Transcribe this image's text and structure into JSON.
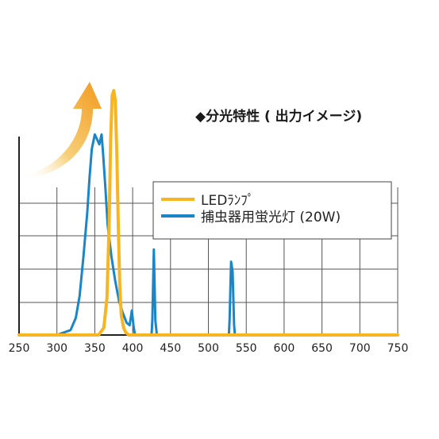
{
  "chart_data": {
    "type": "line",
    "title": "◆分光特性 ( 出力イメージ)",
    "xlabel": "",
    "ylabel": "",
    "xlim": [
      250,
      750
    ],
    "ylim": [
      0,
      1
    ],
    "x_ticks": [
      250,
      300,
      350,
      400,
      450,
      500,
      550,
      600,
      650,
      700,
      750
    ],
    "x_tick_labels": [
      "250",
      "300",
      "350",
      "400",
      "450",
      "500",
      "550",
      "600",
      "650",
      "700",
      "750"
    ],
    "grid": true,
    "legend_position": "top-right",
    "series": [
      {
        "name": "LEDﾗﾝﾌﾟ",
        "color": "#f7b521",
        "x": [
          250,
          355,
          362,
          366,
          369,
          371,
          373,
          375,
          377,
          379,
          381,
          383,
          385,
          388,
          391,
          395,
          400,
          750
        ],
        "y": [
          0,
          0,
          0.03,
          0.15,
          0.45,
          0.8,
          0.98,
          1.0,
          0.96,
          0.75,
          0.45,
          0.2,
          0.08,
          0.03,
          0.01,
          0,
          0,
          0
        ]
      },
      {
        "name": "捕虫器用蛍光灯 (20W)",
        "color": "#1a86c8",
        "x": [
          250,
          300,
          318,
          325,
          330,
          335,
          340,
          343,
          346,
          350,
          353,
          356,
          359,
          361,
          364,
          367,
          372,
          377,
          382,
          387,
          392,
          396,
          399,
          401,
          403,
          405,
          425,
          426,
          428,
          430,
          432,
          433,
          527,
          528,
          530,
          532,
          534,
          535,
          750
        ],
        "y": [
          0,
          0,
          0.02,
          0.07,
          0.16,
          0.32,
          0.5,
          0.64,
          0.76,
          0.82,
          0.8,
          0.78,
          0.82,
          0.74,
          0.6,
          0.45,
          0.32,
          0.22,
          0.14,
          0.09,
          0.05,
          0.04,
          0.1,
          0.04,
          0,
          0,
          0,
          0.06,
          0.35,
          0.06,
          0,
          0,
          0,
          0.06,
          0.3,
          0.26,
          0.04,
          0,
          0
        ]
      }
    ]
  }
}
